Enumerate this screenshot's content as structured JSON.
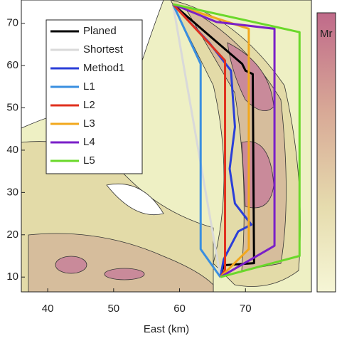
{
  "chart_data": {
    "type": "line",
    "xlabel": "East (km)",
    "colorbar_label": "Mr",
    "xlim": [
      36,
      80
    ],
    "ylim": [
      6.5,
      75.5
    ],
    "xticks": [
      40,
      50,
      60,
      70
    ],
    "yticks": [
      10,
      20,
      30,
      40,
      50,
      60,
      70
    ],
    "legend": "upper left",
    "series": [
      {
        "name": "Planed",
        "color": "#000000",
        "x": [
          59,
          63.9,
          69.5,
          70,
          71.1,
          71.3,
          66.7,
          66.2
        ],
        "values": [
          74.5,
          67.9,
          60.4,
          58.8,
          58,
          13.3,
          12.8,
          10
        ]
      },
      {
        "name": "Shortest",
        "color": "#d9d9d9",
        "x": [
          59,
          66.2
        ],
        "values": [
          74.5,
          10
        ]
      },
      {
        "name": "Method1",
        "color": "#2b3fd8",
        "x": [
          59,
          64.5,
          67.8,
          68.4,
          67.6,
          68.4,
          70.9,
          68.9,
          66.7,
          66.2
        ],
        "values": [
          74.5,
          65.4,
          58.8,
          45.5,
          35.6,
          27.4,
          22.4,
          20.8,
          14.2,
          10
        ]
      },
      {
        "name": "L1",
        "color": "#3a8fe0",
        "x": [
          59,
          63.2,
          63.2,
          66.2
        ],
        "values": [
          74.5,
          60.4,
          16.6,
          10
        ]
      },
      {
        "name": "L2",
        "color": "#e0301e",
        "x": [
          59,
          66.9,
          66.9,
          66.2
        ],
        "values": [
          74.5,
          61.2,
          11.6,
          10
        ]
      },
      {
        "name": "L3",
        "color": "#f2a81d",
        "x": [
          59,
          70.5,
          70.5,
          66.2
        ],
        "values": [
          74.5,
          68.7,
          16.6,
          10
        ]
      },
      {
        "name": "L4",
        "color": "#7a1fc8",
        "x": [
          59,
          65.6,
          74.4,
          74.4,
          66.2
        ],
        "values": [
          74.5,
          70.3,
          68.7,
          17.4,
          10
        ]
      },
      {
        "name": "L5",
        "color": "#6ad82a",
        "x": [
          59,
          78.2,
          78.2,
          66.2
        ],
        "values": [
          74.5,
          67.9,
          15,
          10
        ]
      }
    ]
  }
}
